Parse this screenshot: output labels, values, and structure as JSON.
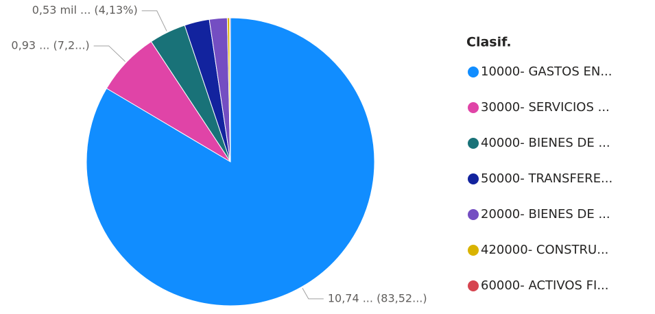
{
  "chart_data": {
    "type": "pie",
    "legend_title": "Clasif.",
    "categories": [
      "10000- GASTOS EN...",
      "30000- SERVICIOS ...",
      "40000- BIENES DE ...",
      "50000- TRANSFERE...",
      "20000- BIENES DE ...",
      "420000- CONSTRU...",
      "60000- ACTIVOS FI..."
    ],
    "values": [
      83.52,
      7.2,
      4.13,
      2.8,
      2.0,
      0.25,
      0.1
    ],
    "value_labels": [
      "10,74 ... (83,52...)",
      "0,93 ... (7,2...)",
      "0,53 mil ... (4,13%)",
      null,
      null,
      null,
      null
    ],
    "colors": [
      "#118DFF",
      "#E044A7",
      "#197278",
      "#12239E",
      "#744EC2",
      "#D9B300",
      "#D64550"
    ],
    "legend": "right"
  }
}
